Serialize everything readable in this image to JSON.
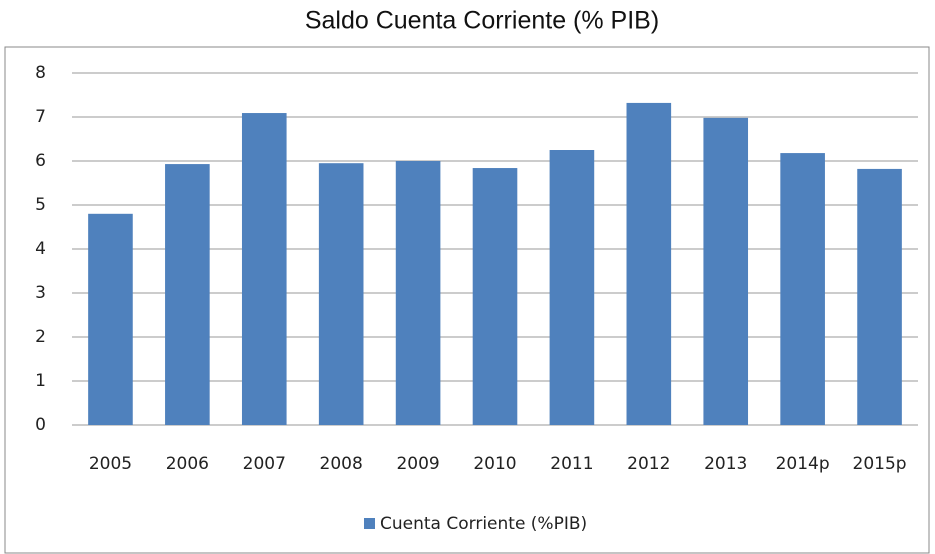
{
  "chart_data": {
    "type": "bar",
    "title": "Saldo Cuenta Corriente (% PIB)",
    "categories": [
      "2005",
      "2006",
      "2007",
      "2008",
      "2009",
      "2010",
      "2011",
      "2012",
      "2013",
      "2014p",
      "2015p"
    ],
    "series": [
      {
        "name": "Cuenta Corriente (%PIB)",
        "color": "#4f81bd",
        "values": [
          4.8,
          5.93,
          7.09,
          5.95,
          6.0,
          5.84,
          6.25,
          7.32,
          6.98,
          6.18,
          5.82
        ]
      }
    ],
    "ylim": [
      0,
      8
    ],
    "yticks": [
      0,
      1,
      2,
      3,
      4,
      5,
      6,
      7,
      8
    ],
    "grid": true,
    "legend": "bottom"
  }
}
